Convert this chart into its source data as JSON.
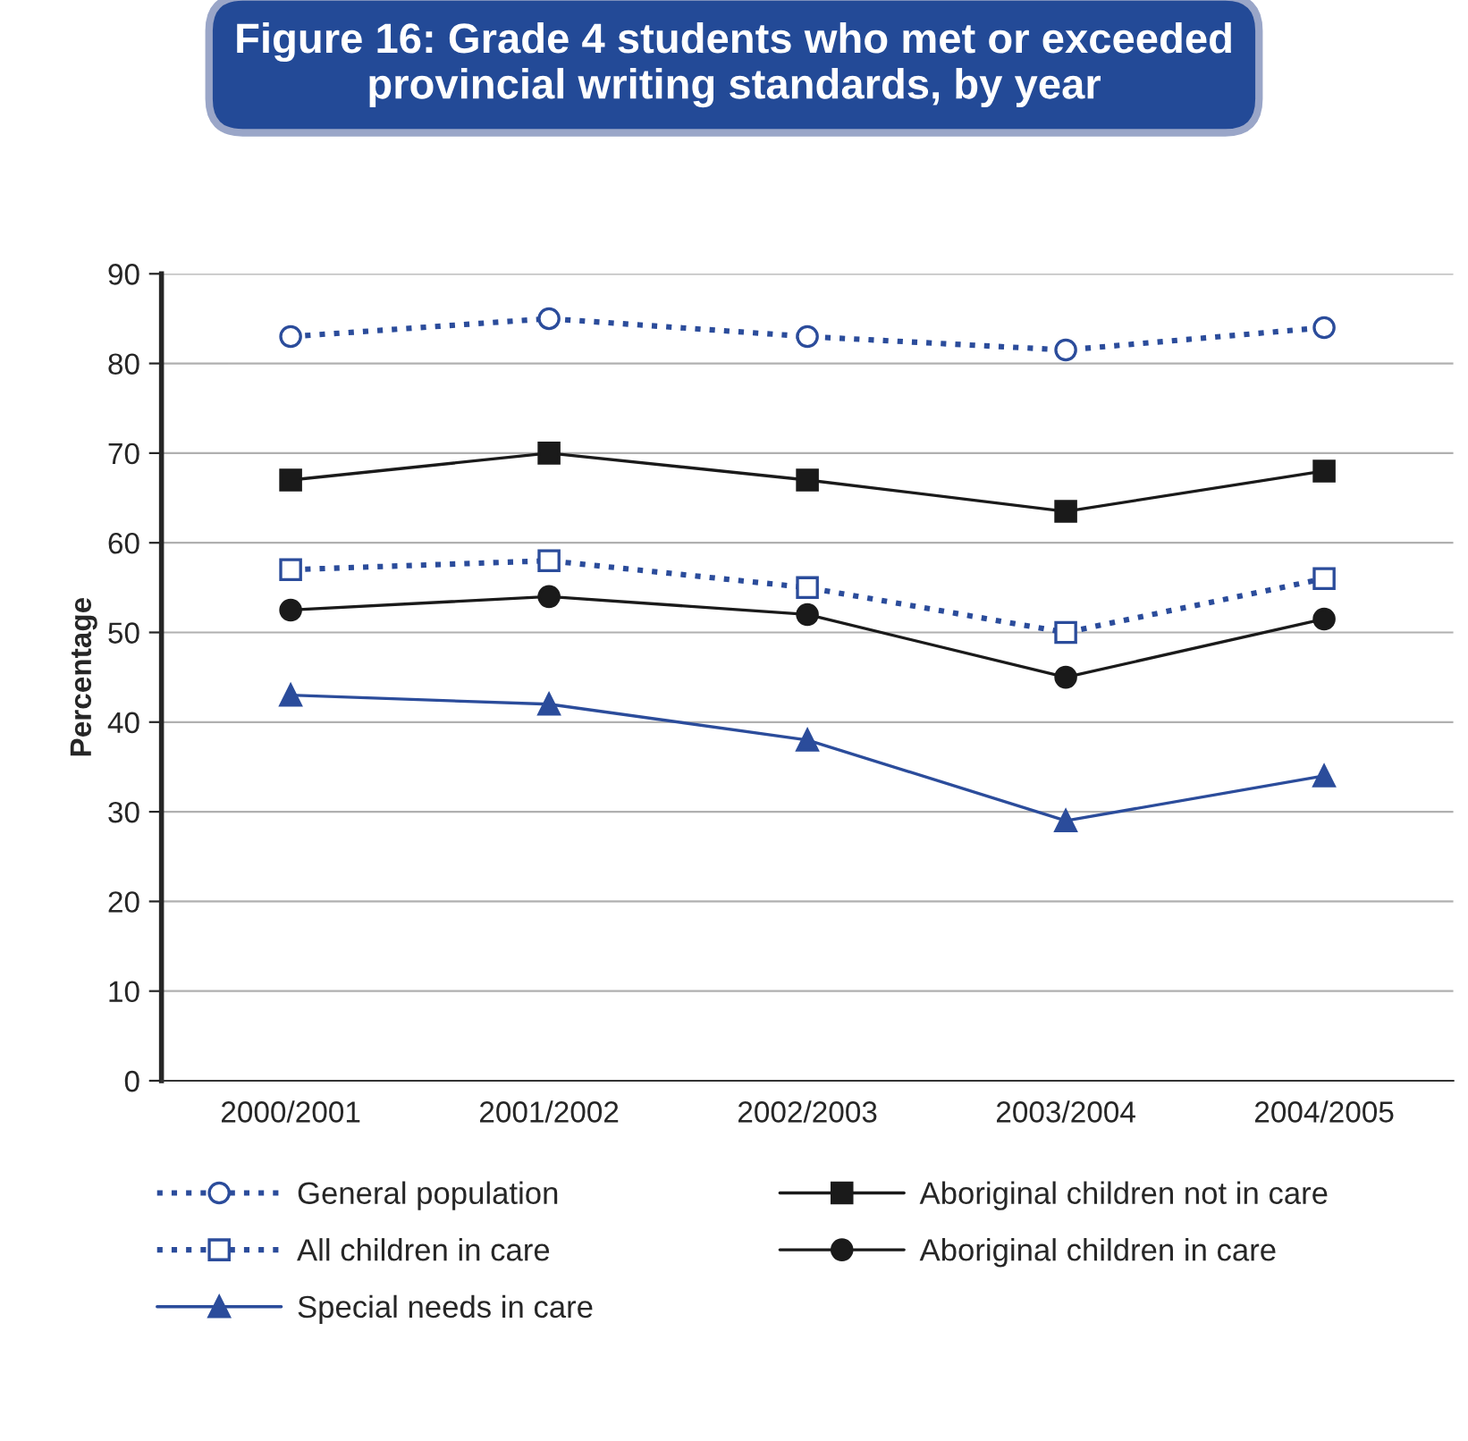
{
  "chart_data": {
    "type": "line",
    "title": "Figure 16: Grade 4 students who met or exceeded\nprovincial writing standards, by year",
    "ylabel": "Percentage",
    "categories": [
      "2000/2001",
      "2001/2002",
      "2002/2003",
      "2003/2004",
      "2004/2005"
    ],
    "series": [
      {
        "name": "General population",
        "color": "#2b4c9b",
        "marker": "circle",
        "line_style": "dotted",
        "values": [
          83,
          85,
          83,
          81.5,
          84
        ]
      },
      {
        "name": "Aboriginal children not in care",
        "color": "#1a1a1a",
        "marker": "square",
        "line_style": "solid",
        "values": [
          67,
          70,
          67,
          63.5,
          68
        ]
      },
      {
        "name": "All children in care",
        "color": "#2b4c9b",
        "marker": "square",
        "line_style": "dotted",
        "values": [
          57,
          58,
          55,
          50,
          56
        ]
      },
      {
        "name": "Aboriginal children in care",
        "color": "#1a1a1a",
        "marker": "circle",
        "line_style": "solid",
        "values": [
          52.5,
          54,
          52,
          45,
          51.5
        ]
      },
      {
        "name": "Special needs in care",
        "color": "#2b4c9b",
        "marker": "triangle",
        "line_style": "solid",
        "values": [
          43,
          42,
          38,
          29,
          34
        ]
      }
    ],
    "ylim": [
      0,
      90
    ],
    "yticks": [
      0,
      10,
      20,
      30,
      40,
      50,
      60,
      70,
      80,
      90
    ],
    "grid": "y",
    "legend": "bottom"
  }
}
